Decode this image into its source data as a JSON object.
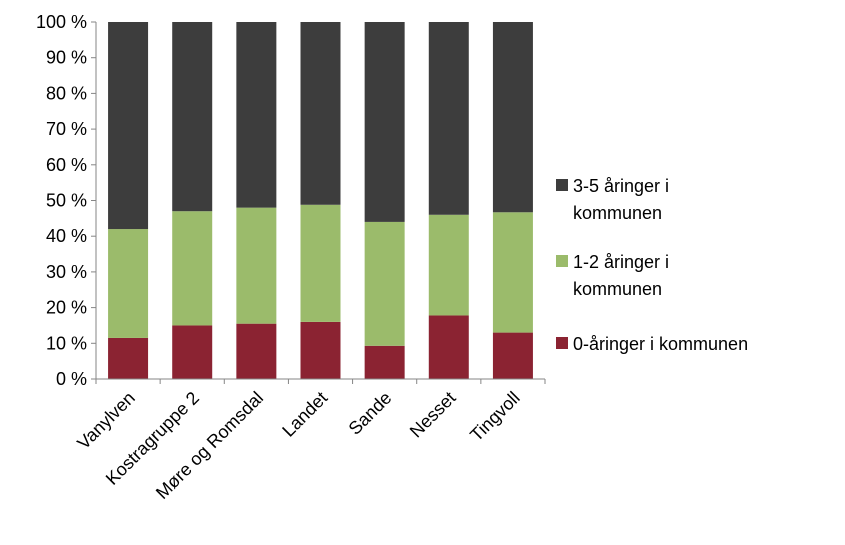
{
  "chart_data": {
    "type": "bar",
    "stacked": true,
    "percent_scale": true,
    "categories": [
      "Vanylven",
      "Kostragruppe 2",
      "Møre og Romsdal",
      "Landet",
      "Sande",
      "Nesset",
      "Tingvoll"
    ],
    "series": [
      {
        "name": "0-åringer i kommunen",
        "color": "#8b2332",
        "values": [
          11.5,
          15.0,
          15.5,
          16.0,
          9.3,
          17.8,
          13.0
        ]
      },
      {
        "name": "1-2 åringer i kommunen",
        "legend_lines": [
          "1-2 åringer i",
          "kommunen"
        ],
        "color": "#9bbb6b",
        "values": [
          30.5,
          32.0,
          32.5,
          32.8,
          34.7,
          28.2,
          33.7
        ]
      },
      {
        "name": "3-5 åringer i kommunen",
        "legend_lines": [
          "3-5 åringer i",
          "kommunen"
        ],
        "color": "#3d3d3d",
        "values": [
          58.0,
          53.0,
          52.0,
          51.2,
          56.0,
          54.0,
          53.3
        ]
      }
    ],
    "ylim": [
      0,
      100
    ],
    "yticks": [
      0,
      10,
      20,
      30,
      40,
      50,
      60,
      70,
      80,
      90,
      100
    ],
    "ytick_labels": [
      "0 %",
      "10 %",
      "20 %",
      "30 %",
      "40 %",
      "50 %",
      "60 %",
      "70 %",
      "80 %",
      "90 %",
      "100 %"
    ],
    "grid": false,
    "legend_position": "right",
    "title": "",
    "xlabel": "",
    "ylabel": ""
  }
}
